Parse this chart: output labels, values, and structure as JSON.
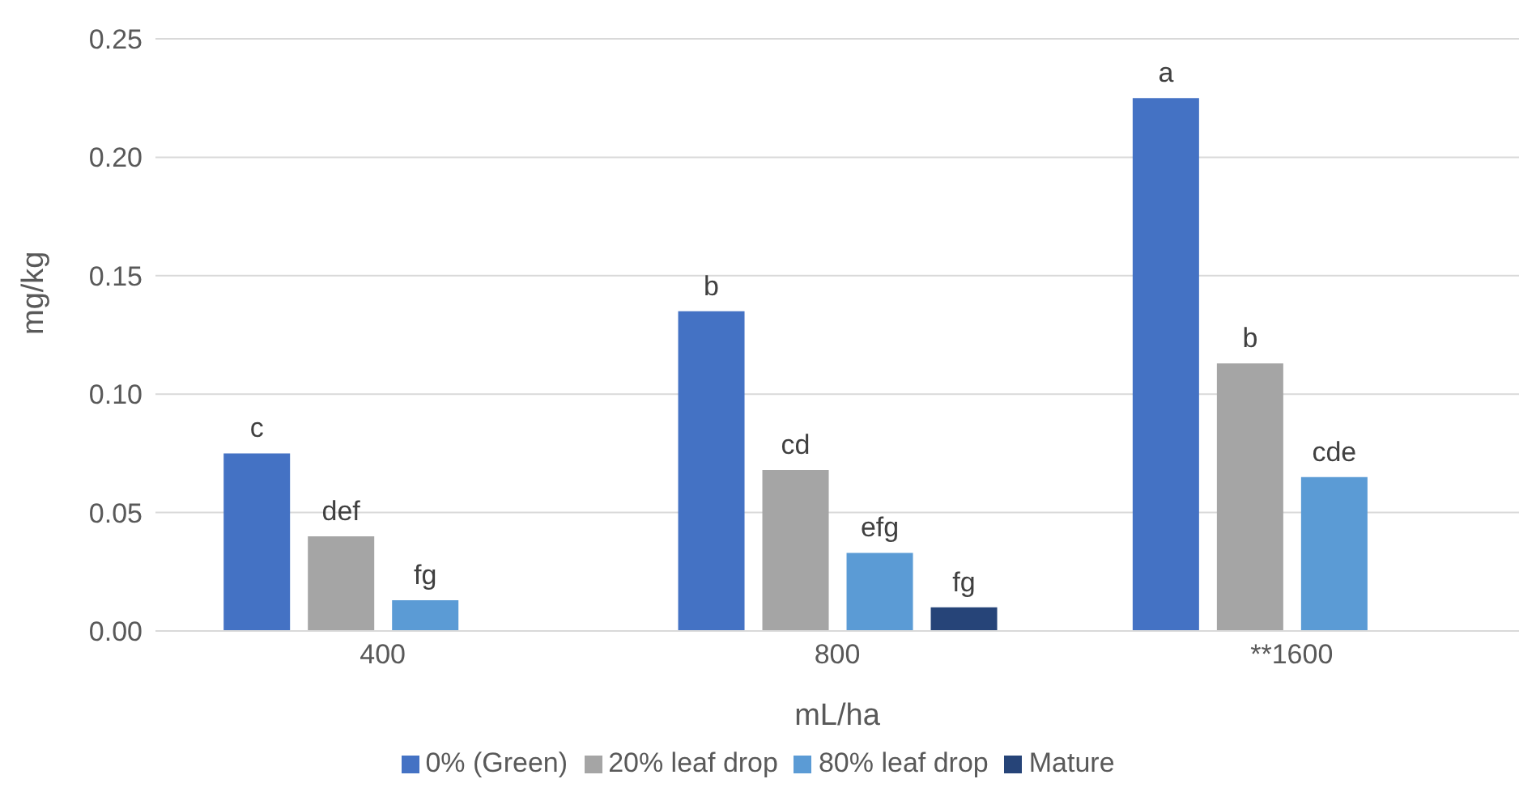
{
  "chart_data": {
    "type": "bar",
    "xlabel": "mL/ha",
    "ylabel": "mg/kg",
    "categories": [
      "400",
      "800",
      "**1600"
    ],
    "series": [
      {
        "name": "0% (Green)",
        "color": "#4472c4",
        "values": [
          0.075,
          0.135,
          0.225
        ],
        "value_labels": [
          "c",
          "b",
          "a"
        ]
      },
      {
        "name": "20% leaf drop",
        "color": "#a5a5a5",
        "values": [
          0.04,
          0.068,
          0.113
        ],
        "value_labels": [
          "def",
          "cd",
          "b"
        ]
      },
      {
        "name": "80% leaf drop",
        "color": "#5b9bd5",
        "values": [
          0.013,
          0.033,
          0.065
        ],
        "value_labels": [
          "fg",
          "efg",
          "cde"
        ]
      },
      {
        "name": "Mature",
        "color": "#264478",
        "values": [
          null,
          0.01,
          null
        ],
        "value_labels": [
          null,
          "fg",
          null
        ]
      }
    ],
    "ylim": [
      0,
      0.25
    ],
    "yticks": [
      {
        "value": 0,
        "label": "0.00"
      },
      {
        "value": 0.05,
        "label": "0.05"
      },
      {
        "value": 0.1,
        "label": "0.10"
      },
      {
        "value": 0.15,
        "label": "0.15"
      },
      {
        "value": 0.2,
        "label": "0.20"
      },
      {
        "value": 0.25,
        "label": "0.25"
      }
    ],
    "grid": "y",
    "legend": "bottom"
  }
}
